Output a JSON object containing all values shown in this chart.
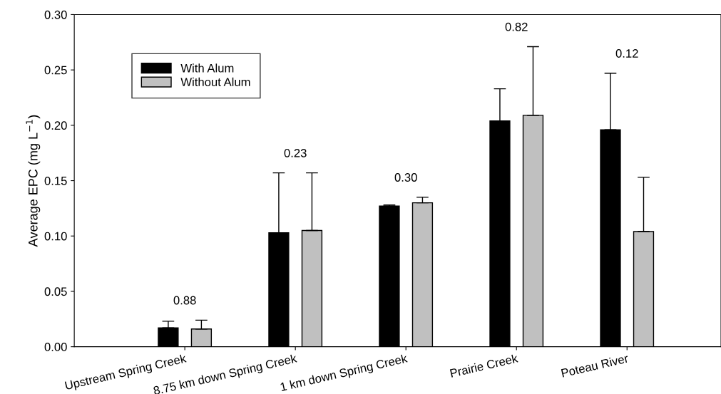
{
  "chart_data": {
    "type": "bar",
    "ylabel": "Average EPC (mg L$^{−1}$)",
    "categories": [
      "Upstream Spring Creek",
      "8.75 km down Spring Creek",
      "1 km down Spring Creek",
      "Prairie Creek",
      "Poteau River"
    ],
    "series": [
      {
        "name": "With Alum",
        "color": "#000000",
        "values": [
          0.017,
          0.103,
          0.127,
          0.204,
          0.196
        ],
        "errors": [
          [
            0.017,
            0.023
          ],
          [
            0.103,
            0.157
          ],
          [
            0.127,
            0.128
          ],
          [
            0.204,
            0.233
          ],
          [
            0.196,
            0.247
          ]
        ]
      },
      {
        "name": "Without Alum",
        "color": "#c0c0c0",
        "values": [
          0.016,
          0.105,
          0.13,
          0.209,
          0.104
        ],
        "errors": [
          [
            0.016,
            0.024
          ],
          [
            0.105,
            0.157
          ],
          [
            0.13,
            0.135
          ],
          [
            0.209,
            0.271
          ],
          [
            0.104,
            0.153
          ]
        ]
      }
    ],
    "ylim": [
      0,
      0.3
    ],
    "yticks": [
      {
        "value": 0,
        "label": "0.00"
      },
      {
        "value": 0.05,
        "label": "0.05"
      },
      {
        "value": 0.1,
        "label": "0.10"
      },
      {
        "value": 0.15,
        "label": "0.15"
      },
      {
        "value": 0.2,
        "label": "0.20"
      },
      {
        "value": 0.25,
        "label": "0.25"
      },
      {
        "value": 0.3,
        "label": "0.30"
      }
    ],
    "annotations": [
      "0.88",
      "0.23",
      "0.30",
      "0.82",
      "0.12"
    ],
    "legend": "top left",
    "grid": false
  }
}
